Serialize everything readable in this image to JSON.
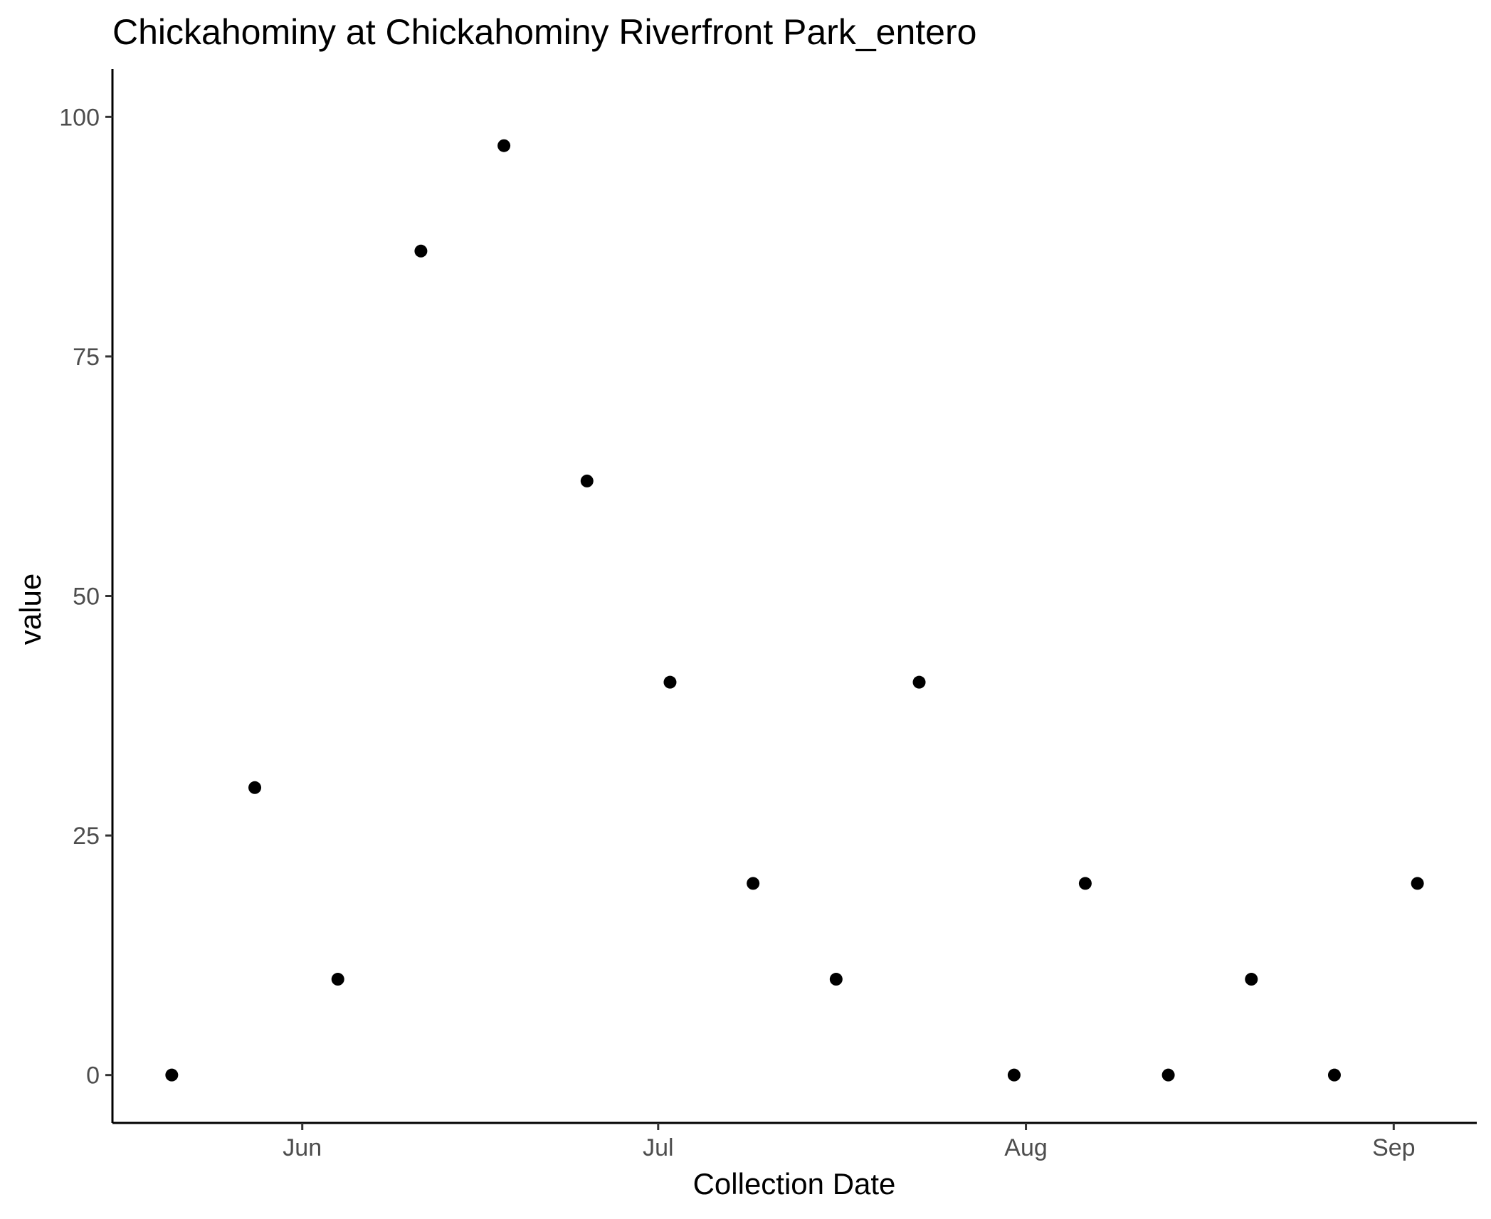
{
  "chart_data": {
    "type": "scatter",
    "title": "Chickahominy at Chickahominy Riverfront Park_entero",
    "xlabel": "Collection Date",
    "ylabel": "value",
    "x_ticks": [
      {
        "label": "Jun",
        "date": "2021-06-01"
      },
      {
        "label": "Jul",
        "date": "2021-07-01"
      },
      {
        "label": "Aug",
        "date": "2021-08-01"
      },
      {
        "label": "Sep",
        "date": "2021-09-01"
      }
    ],
    "y_ticks": [
      0,
      25,
      50,
      75,
      100
    ],
    "xlim": [
      "2021-05-16",
      "2021-09-08"
    ],
    "ylim": [
      -5,
      105
    ],
    "grid": false,
    "legend": "none",
    "point_color": "#000000",
    "points": [
      {
        "x": "2021-05-21",
        "y": 0
      },
      {
        "x": "2021-05-28",
        "y": 30
      },
      {
        "x": "2021-06-04",
        "y": 10
      },
      {
        "x": "2021-06-11",
        "y": 86
      },
      {
        "x": "2021-06-18",
        "y": 97
      },
      {
        "x": "2021-06-25",
        "y": 62
      },
      {
        "x": "2021-07-02",
        "y": 41
      },
      {
        "x": "2021-07-09",
        "y": 20
      },
      {
        "x": "2021-07-16",
        "y": 10
      },
      {
        "x": "2021-07-23",
        "y": 41
      },
      {
        "x": "2021-07-31",
        "y": 0
      },
      {
        "x": "2021-08-06",
        "y": 20
      },
      {
        "x": "2021-08-13",
        "y": 0
      },
      {
        "x": "2021-08-20",
        "y": 10
      },
      {
        "x": "2021-08-27",
        "y": 0
      },
      {
        "x": "2021-09-03",
        "y": 20
      }
    ]
  }
}
